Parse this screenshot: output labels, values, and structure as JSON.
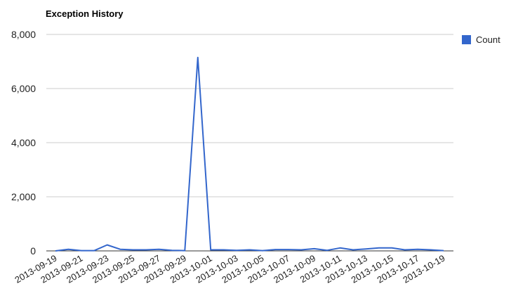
{
  "chart_data": {
    "type": "line",
    "title": "Exception History",
    "xlabel": "",
    "ylabel": "",
    "ylim": [
      0,
      8000
    ],
    "y_ticks": [
      0,
      2000,
      4000,
      6000,
      8000
    ],
    "y_tick_labels": [
      "0",
      "2,000",
      "4,000",
      "6,000",
      "8,000"
    ],
    "grid": true,
    "legend_position": "right",
    "x": [
      "2013-09-19",
      "2013-09-20",
      "2013-09-21",
      "2013-09-22",
      "2013-09-23",
      "2013-09-24",
      "2013-09-25",
      "2013-09-26",
      "2013-09-27",
      "2013-09-28",
      "2013-09-29",
      "2013-09-30",
      "2013-10-01",
      "2013-10-02",
      "2013-10-03",
      "2013-10-04",
      "2013-10-05",
      "2013-10-06",
      "2013-10-07",
      "2013-10-08",
      "2013-10-09",
      "2013-10-10",
      "2013-10-11",
      "2013-10-12",
      "2013-10-13",
      "2013-10-14",
      "2013-10-15",
      "2013-10-16",
      "2013-10-17",
      "2013-10-18",
      "2013-10-19"
    ],
    "x_tick_labels": [
      "2013-09-19",
      "2013-09-21",
      "2013-09-23",
      "2013-09-25",
      "2013-09-27",
      "2013-09-29",
      "2013-10-01",
      "2013-10-03",
      "2013-10-05",
      "2013-10-07",
      "2013-10-09",
      "2013-10-11",
      "2013-10-13",
      "2013-10-15",
      "2013-10-17",
      "2013-10-19"
    ],
    "series": [
      {
        "name": "Count",
        "color": "#3366cc",
        "values": [
          0,
          60,
          10,
          10,
          220,
          60,
          40,
          40,
          60,
          20,
          10,
          7150,
          40,
          40,
          20,
          40,
          10,
          50,
          50,
          40,
          80,
          20,
          110,
          40,
          70,
          110,
          110,
          40,
          60,
          40,
          10
        ]
      }
    ]
  }
}
